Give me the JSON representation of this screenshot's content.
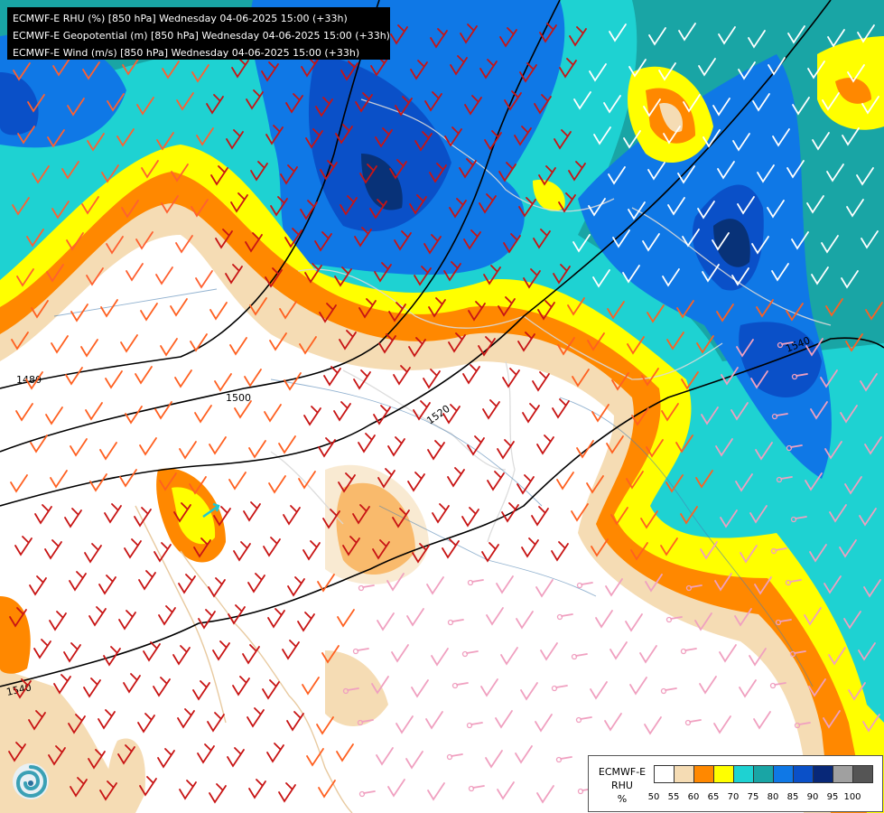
{
  "header": {
    "lines": [
      "ECMWF-E RHU (%) [850 hPa] Wednesday 04-06-2025 15:00 (+33h)",
      "ECMWF-E Geopotential (m) [850 hPa] Wednesday 04-06-2025 15:00 (+33h)",
      "ECMWF-E Wind (m/s) [850 hPa] Wednesday 04-06-2025 15:00 (+33h)"
    ]
  },
  "map": {
    "contour_labels": [
      "1480",
      "1500",
      "1520",
      "1540",
      "1540"
    ],
    "colors": {
      "c50": "#ffffff",
      "c55": "#f5dcb4",
      "c60": "#ff8800",
      "c65": "#ffff00",
      "c70": "#1ed2d2",
      "c75": "#19a5a5",
      "c80": "#0f78e6",
      "c85": "#0a50c8",
      "c90": "#083278"
    }
  },
  "legend": {
    "title_lines": [
      "ECMWF-E",
      "RHU",
      "%"
    ],
    "swatches": [
      "#ffffff",
      "#f5dcb4",
      "#ff8800",
      "#ffff00",
      "#1ed2d2",
      "#19a5a5",
      "#0f78e6",
      "#0a50c8",
      "#082878",
      "#a0a0a0",
      "#555555"
    ],
    "ticks": [
      "50",
      "55",
      "60",
      "65",
      "70",
      "75",
      "80",
      "85",
      "90",
      "95",
      "100"
    ]
  },
  "logo": {
    "icon": "ecmwf-logo-icon"
  }
}
